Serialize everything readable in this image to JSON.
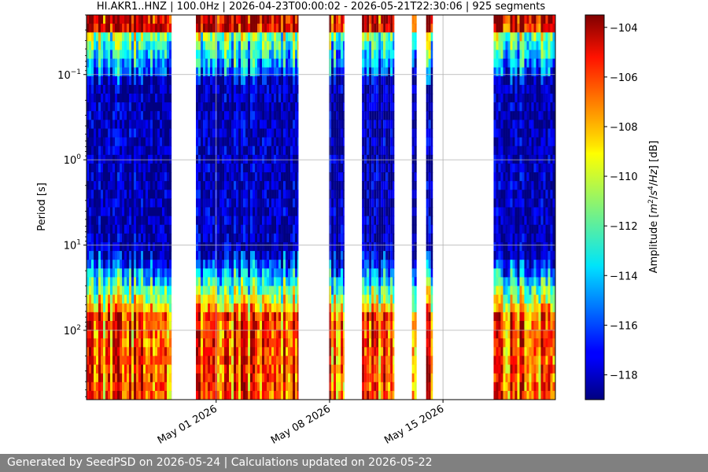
{
  "chart_data": {
    "type": "heatmap",
    "title": "HI.AKR1..HNZ | 100.0Hz | 2026-04-23T00:00:02 - 2026-05-21T22:30:06 | 925 segments",
    "xlabel": "",
    "ylabel": "Period [s]",
    "y_scale": "log",
    "ylim": [
      0.02,
      650
    ],
    "y_ticks": [
      {
        "value": 0.1,
        "base": "10",
        "exp": "−1"
      },
      {
        "value": 1,
        "base": "10",
        "exp": "0"
      },
      {
        "value": 10,
        "base": "10",
        "exp": "1"
      },
      {
        "value": 100,
        "base": "10",
        "exp": "2"
      }
    ],
    "xlim": [
      "2026-04-23T00:00",
      "2026-05-21T22:30"
    ],
    "x_ticks": [
      {
        "value": "2026-05-01",
        "label": "May 01 2026"
      },
      {
        "value": "2026-05-08",
        "label": "May 08 2026"
      },
      {
        "value": "2026-05-15",
        "label": "May 15 2026"
      }
    ],
    "grid": true,
    "colormap": "jet",
    "colorbar": {
      "label": "Amplitude [m²/s⁴/Hz] [dB]",
      "label_parts": [
        "Amplitude [",
        "m",
        "2",
        "/",
        "s",
        "4",
        "/",
        "Hz",
        "] [dB]"
      ],
      "range": [
        -119,
        -103.5
      ],
      "ticks": [
        -104,
        -106,
        -108,
        -110,
        -112,
        -114,
        -116,
        -118
      ],
      "tick_labels": [
        "−104",
        "−106",
        "−108",
        "−110",
        "−112",
        "−114",
        "−116",
        "−118"
      ]
    },
    "segments_count": 925,
    "data_segments": [
      {
        "start": "2026-04-23T00:00",
        "end": "2026-04-28T06:00"
      },
      {
        "start": "2026-04-29T18:00",
        "end": "2026-05-06T02:00"
      },
      {
        "start": "2026-05-07T23:00",
        "end": "2026-05-08T22:00"
      },
      {
        "start": "2026-05-10T00:00",
        "end": "2026-05-12T00:00"
      },
      {
        "start": "2026-05-13T02:00",
        "end": "2026-05-13T09:00"
      },
      {
        "start": "2026-05-13T23:00",
        "end": "2026-05-14T09:00"
      },
      {
        "start": "2026-05-18T03:00",
        "end": "2026-05-21T22:30"
      }
    ]
  },
  "footer": {
    "text": "Generated by SeedPSD on 2026-05-24 | Calculations updated on 2026-05-22"
  }
}
